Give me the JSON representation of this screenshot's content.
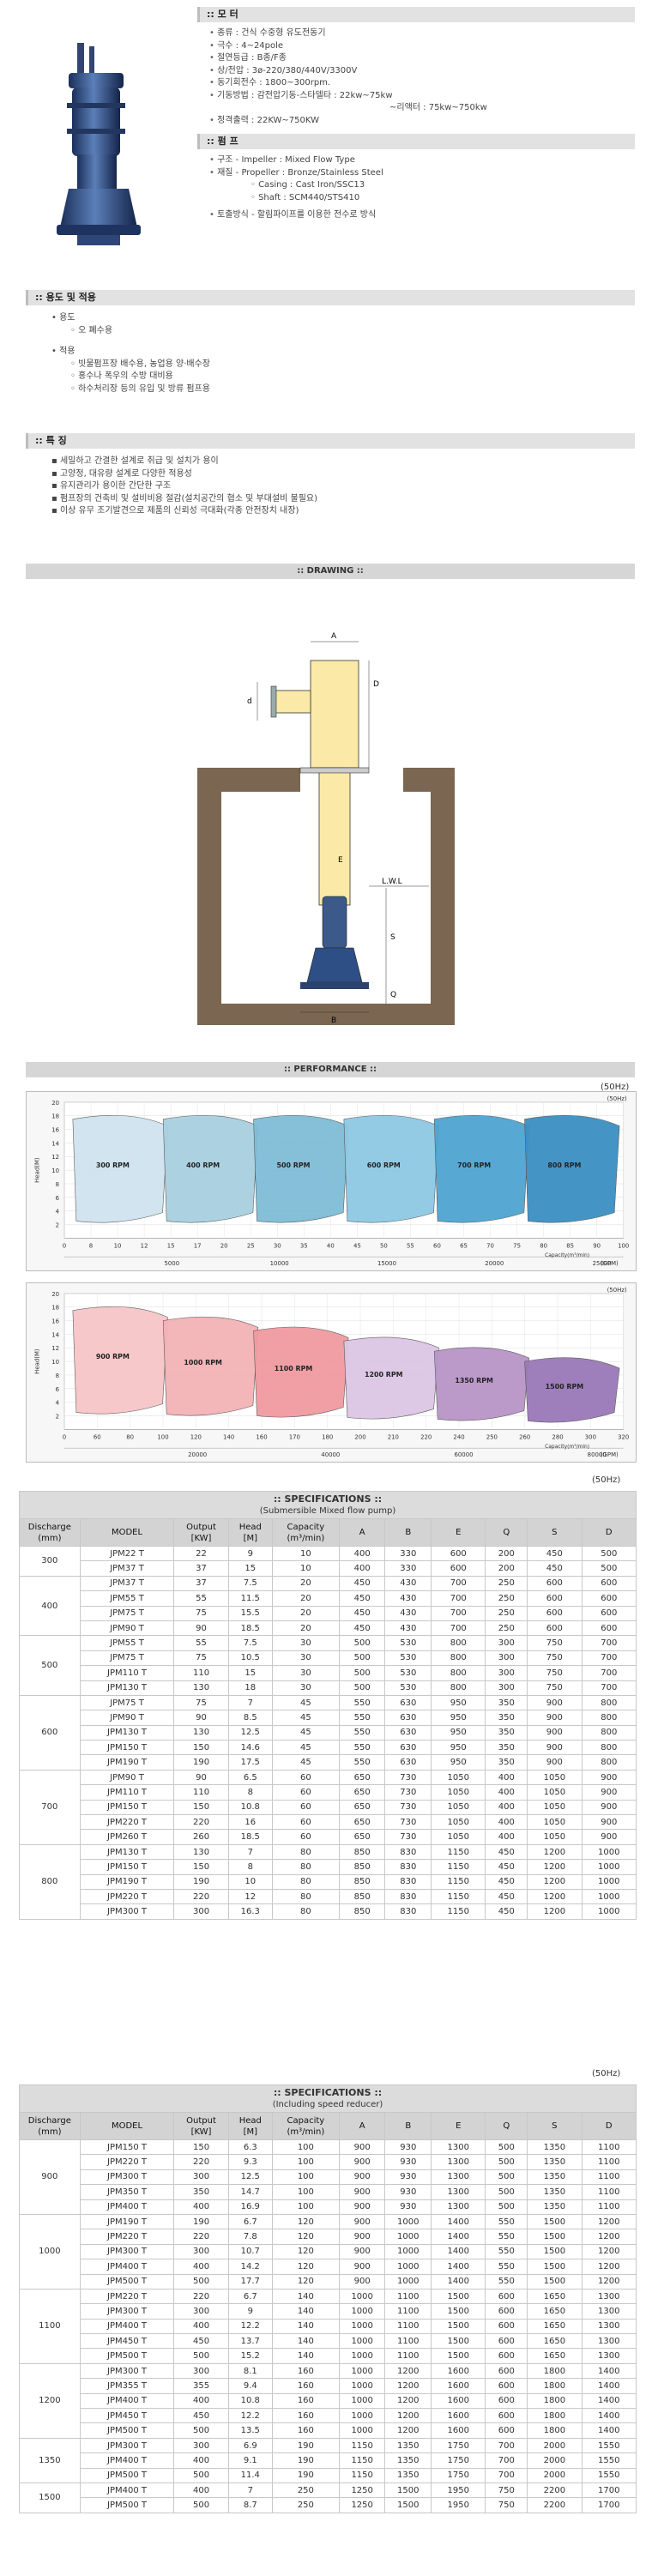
{
  "motor": {
    "header": ":: 모 터",
    "items": [
      "종류 : 건식 수중형 유도전동기",
      "극수 : 4~24pole",
      "절연등급 : B종/F종",
      "상/전압 : 3ø-220/380/440V/3300V",
      "동기회전수 : 1800~300rpm.",
      "기동방법 : 감전압기동-스타델타 : 22kw~75kw",
      "~리액터 : 75kw~750kw",
      "정격출력 : 22KW~750KW"
    ]
  },
  "pump": {
    "header": ":: 펌 프",
    "items": [
      {
        "text": "구조 - Impeller : Mixed Flow Type",
        "sub": false
      },
      {
        "text": "재질 - Propeller : Bronze/Stainless Steel",
        "sub": false
      },
      {
        "text": "Casing : Cast Iron/SSC13",
        "sub": true
      },
      {
        "text": "Shaft : SCM440/STS410",
        "sub": true
      },
      {
        "text": "토출방식 - 할림파이프를 이용한 전수로 방식",
        "sub": false
      }
    ]
  },
  "usage": {
    "header": ":: 용도 및 적용",
    "purpose_label": "용도",
    "purpose_items": [
      "오 폐수용"
    ],
    "apply_label": "적용",
    "apply_items": [
      "빗물펌프장 배수용, 농업용 양·배수장",
      "홍수나 폭우의 수방 대비용",
      "하수처리장 등의 유입 및 방류 펌프용"
    ]
  },
  "features": {
    "header": ":: 특 징",
    "items": [
      "세밀하고 간결한 설계로 취급 및 설치가 용이",
      "고양정, 대유량 설계로 다양한 적용성",
      "유지관리가 용이한 간단한 구조",
      "펌프장의 건축비 및 설비비용 절감(설치공간의 협소 및 부대설비 불필요)",
      "이상 유무 조기발견으로 제품의 신뢰성 극대화(각종 안전장치 내장)"
    ]
  },
  "drawing": {
    "header": ":: DRAWING ::",
    "labels": {
      "a": "A",
      "d": "D",
      "d2": "d",
      "e": "E",
      "lwl": "L.W.L",
      "s": "S",
      "q": "Q",
      "b": "B"
    }
  },
  "performance": {
    "header": ":: PERFORMANCE ::",
    "hz": "(50Hz)",
    "ylabel": "Head(M)",
    "xlabel": "Capacity(m³/min)",
    "chart1": {
      "y_ticks": [
        "20",
        "18",
        "16",
        "14",
        "12",
        "10",
        "8",
        "6",
        "4",
        "2"
      ],
      "x_ticks": [
        "0",
        "8",
        "10",
        "12",
        "15",
        "17",
        "20",
        "25",
        "30",
        "35",
        "40",
        "45",
        "50",
        "55",
        "60",
        "65",
        "70",
        "75",
        "80",
        "85",
        "90",
        "100"
      ],
      "gpm_ticks": [
        "5000",
        "10000",
        "15000",
        "20000",
        "25000"
      ],
      "gpm_label": "(GPM)",
      "x_label": "Capacity(m³/min)",
      "curves": [
        "300 RPM",
        "400 RPM",
        "500 RPM",
        "600 RPM",
        "700 RPM",
        "800 RPM"
      ]
    },
    "chart2": {
      "y_ticks": [
        "20",
        "18",
        "16",
        "14",
        "12",
        "10",
        "8",
        "6",
        "4",
        "2"
      ],
      "x_ticks": [
        "0",
        "60",
        "80",
        "100",
        "120",
        "140",
        "160",
        "170",
        "180",
        "200",
        "210",
        "220",
        "240",
        "250",
        "260",
        "280",
        "300",
        "320"
      ],
      "gpm_ticks": [
        "20000",
        "40000",
        "60000",
        "80000"
      ],
      "gpm_label": "(GPM)",
      "x_label": "Capacity(m³/min)",
      "curves": [
        "900 RPM",
        "1000 RPM",
        "1100 RPM",
        "1200 RPM",
        "1350 RPM",
        "1500 RPM"
      ]
    }
  },
  "colors": {
    "blue_curves": [
      "#cfe3ef",
      "#a8d0e0",
      "#7fbcd6",
      "#8ec9e4",
      "#4fa4d1",
      "#3c8fc4"
    ],
    "red_curves": [
      "#f7c6c8",
      "#f3b3b6",
      "#f09aa0",
      "#dcc6e4",
      "#b895c8",
      "#9a79b8"
    ]
  },
  "table1": {
    "hz": "(50Hz)",
    "title": ":: SPECIFICATIONS ::",
    "subtitle": "(Submersible Mixed flow pump)",
    "headers": [
      "Discharge\n(mm)",
      "MODEL",
      "Output\n[KW]",
      "Head\n[M]",
      "Capacity\n(m³/min)",
      "A",
      "B",
      "E",
      "Q",
      "S",
      "D"
    ],
    "groups": [
      {
        "discharge": "300",
        "rows": [
          [
            "JPM22 T",
            "22",
            "9",
            "10",
            "400",
            "330",
            "600",
            "200",
            "450",
            "500"
          ],
          [
            "JPM37 T",
            "37",
            "15",
            "10",
            "400",
            "330",
            "600",
            "200",
            "450",
            "500"
          ]
        ]
      },
      {
        "discharge": "400",
        "rows": [
          [
            "JPM37 T",
            "37",
            "7.5",
            "20",
            "450",
            "430",
            "700",
            "250",
            "600",
            "600"
          ],
          [
            "JPM55 T",
            "55",
            "11.5",
            "20",
            "450",
            "430",
            "700",
            "250",
            "600",
            "600"
          ],
          [
            "JPM75 T",
            "75",
            "15.5",
            "20",
            "450",
            "430",
            "700",
            "250",
            "600",
            "600"
          ],
          [
            "JPM90 T",
            "90",
            "18.5",
            "20",
            "450",
            "430",
            "700",
            "250",
            "600",
            "600"
          ]
        ]
      },
      {
        "discharge": "500",
        "rows": [
          [
            "JPM55 T",
            "55",
            "7.5",
            "30",
            "500",
            "530",
            "800",
            "300",
            "750",
            "700"
          ],
          [
            "JPM75 T",
            "75",
            "10.5",
            "30",
            "500",
            "530",
            "800",
            "300",
            "750",
            "700"
          ],
          [
            "JPM110 T",
            "110",
            "15",
            "30",
            "500",
            "530",
            "800",
            "300",
            "750",
            "700"
          ],
          [
            "JPM130 T",
            "130",
            "18",
            "30",
            "500",
            "530",
            "800",
            "300",
            "750",
            "700"
          ]
        ]
      },
      {
        "discharge": "600",
        "rows": [
          [
            "JPM75 T",
            "75",
            "7",
            "45",
            "550",
            "630",
            "950",
            "350",
            "900",
            "800"
          ],
          [
            "JPM90 T",
            "90",
            "8.5",
            "45",
            "550",
            "630",
            "950",
            "350",
            "900",
            "800"
          ],
          [
            "JPM130 T",
            "130",
            "12.5",
            "45",
            "550",
            "630",
            "950",
            "350",
            "900",
            "800"
          ],
          [
            "JPM150 T",
            "150",
            "14.6",
            "45",
            "550",
            "630",
            "950",
            "350",
            "900",
            "800"
          ],
          [
            "JPM190 T",
            "190",
            "17.5",
            "45",
            "550",
            "630",
            "950",
            "350",
            "900",
            "800"
          ]
        ]
      },
      {
        "discharge": "700",
        "rows": [
          [
            "JPM90 T",
            "90",
            "6.5",
            "60",
            "650",
            "730",
            "1050",
            "400",
            "1050",
            "900"
          ],
          [
            "JPM110 T",
            "110",
            "8",
            "60",
            "650",
            "730",
            "1050",
            "400",
            "1050",
            "900"
          ],
          [
            "JPM150 T",
            "150",
            "10.8",
            "60",
            "650",
            "730",
            "1050",
            "400",
            "1050",
            "900"
          ],
          [
            "JPM220 T",
            "220",
            "16",
            "60",
            "650",
            "730",
            "1050",
            "400",
            "1050",
            "900"
          ],
          [
            "JPM260 T",
            "260",
            "18.5",
            "60",
            "650",
            "730",
            "1050",
            "400",
            "1050",
            "900"
          ]
        ]
      },
      {
        "discharge": "800",
        "rows": [
          [
            "JPM130 T",
            "130",
            "7",
            "80",
            "850",
            "830",
            "1150",
            "450",
            "1200",
            "1000"
          ],
          [
            "JPM150 T",
            "150",
            "8",
            "80",
            "850",
            "830",
            "1150",
            "450",
            "1200",
            "1000"
          ],
          [
            "JPM190 T",
            "190",
            "10",
            "80",
            "850",
            "830",
            "1150",
            "450",
            "1200",
            "1000"
          ],
          [
            "JPM220 T",
            "220",
            "12",
            "80",
            "850",
            "830",
            "1150",
            "450",
            "1200",
            "1000"
          ],
          [
            "JPM300 T",
            "300",
            "16.3",
            "80",
            "850",
            "830",
            "1150",
            "450",
            "1200",
            "1000"
          ]
        ]
      }
    ]
  },
  "table2": {
    "hz": "(50Hz)",
    "title": ":: SPECIFICATIONS ::",
    "subtitle": "(Including speed reducer)",
    "headers": [
      "Discharge\n(mm)",
      "MODEL",
      "Output\n[KW]",
      "Head\n[M]",
      "Capacity\n(m³/min)",
      "A",
      "B",
      "E",
      "Q",
      "S",
      "D"
    ],
    "groups": [
      {
        "discharge": "900",
        "rows": [
          [
            "JPM150 T",
            "150",
            "6.3",
            "100",
            "900",
            "930",
            "1300",
            "500",
            "1350",
            "1100"
          ],
          [
            "JPM220 T",
            "220",
            "9.3",
            "100",
            "900",
            "930",
            "1300",
            "500",
            "1350",
            "1100"
          ],
          [
            "JPM300 T",
            "300",
            "12.5",
            "100",
            "900",
            "930",
            "1300",
            "500",
            "1350",
            "1100"
          ],
          [
            "JPM350 T",
            "350",
            "14.7",
            "100",
            "900",
            "930",
            "1300",
            "500",
            "1350",
            "1100"
          ],
          [
            "JPM400 T",
            "400",
            "16.9",
            "100",
            "900",
            "930",
            "1300",
            "500",
            "1350",
            "1100"
          ]
        ]
      },
      {
        "discharge": "1000",
        "rows": [
          [
            "JPM190 T",
            "190",
            "6.7",
            "120",
            "900",
            "1000",
            "1400",
            "550",
            "1500",
            "1200"
          ],
          [
            "JPM220 T",
            "220",
            "7.8",
            "120",
            "900",
            "1000",
            "1400",
            "550",
            "1500",
            "1200"
          ],
          [
            "JPM300 T",
            "300",
            "10.7",
            "120",
            "900",
            "1000",
            "1400",
            "550",
            "1500",
            "1200"
          ],
          [
            "JPM400 T",
            "400",
            "14.2",
            "120",
            "900",
            "1000",
            "1400",
            "550",
            "1500",
            "1200"
          ],
          [
            "JPM500 T",
            "500",
            "17.7",
            "120",
            "900",
            "1000",
            "1400",
            "550",
            "1500",
            "1200"
          ]
        ]
      },
      {
        "discharge": "1100",
        "rows": [
          [
            "JPM220 T",
            "220",
            "6.7",
            "140",
            "1000",
            "1100",
            "1500",
            "600",
            "1650",
            "1300"
          ],
          [
            "JPM300 T",
            "300",
            "9",
            "140",
            "1000",
            "1100",
            "1500",
            "600",
            "1650",
            "1300"
          ],
          [
            "JPM400 T",
            "400",
            "12.2",
            "140",
            "1000",
            "1100",
            "1500",
            "600",
            "1650",
            "1300"
          ],
          [
            "JPM450 T",
            "450",
            "13.7",
            "140",
            "1000",
            "1100",
            "1500",
            "600",
            "1650",
            "1300"
          ],
          [
            "JPM500 T",
            "500",
            "15.2",
            "140",
            "1000",
            "1100",
            "1500",
            "600",
            "1650",
            "1300"
          ]
        ]
      },
      {
        "discharge": "1200",
        "rows": [
          [
            "JPM300 T",
            "300",
            "8.1",
            "160",
            "1000",
            "1200",
            "1600",
            "600",
            "1800",
            "1400"
          ],
          [
            "JPM355 T",
            "355",
            "9.4",
            "160",
            "1000",
            "1200",
            "1600",
            "600",
            "1800",
            "1400"
          ],
          [
            "JPM400 T",
            "400",
            "10.8",
            "160",
            "1000",
            "1200",
            "1600",
            "600",
            "1800",
            "1400"
          ],
          [
            "JPM450 T",
            "450",
            "12.2",
            "160",
            "1000",
            "1200",
            "1600",
            "600",
            "1800",
            "1400"
          ],
          [
            "JPM500 T",
            "500",
            "13.5",
            "160",
            "1000",
            "1200",
            "1600",
            "600",
            "1800",
            "1400"
          ]
        ]
      },
      {
        "discharge": "1350",
        "rows": [
          [
            "JPM300 T",
            "300",
            "6.9",
            "190",
            "1150",
            "1350",
            "1750",
            "700",
            "2000",
            "1550"
          ],
          [
            "JPM400 T",
            "400",
            "9.1",
            "190",
            "1150",
            "1350",
            "1750",
            "700",
            "2000",
            "1550"
          ],
          [
            "JPM500 T",
            "500",
            "11.4",
            "190",
            "1150",
            "1350",
            "1750",
            "700",
            "2000",
            "1550"
          ]
        ]
      },
      {
        "discharge": "1500",
        "rows": [
          [
            "JPM400 T",
            "400",
            "7",
            "250",
            "1250",
            "1500",
            "1950",
            "750",
            "2200",
            "1700"
          ],
          [
            "JPM500 T",
            "500",
            "8.7",
            "250",
            "1250",
            "1500",
            "1950",
            "750",
            "2200",
            "1700"
          ]
        ]
      }
    ]
  }
}
